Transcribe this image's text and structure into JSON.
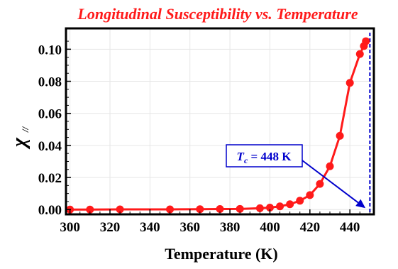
{
  "chart_data": {
    "type": "line",
    "title": "Longitudinal Susceptibility vs. Temperature",
    "xlabel": "Temperature (K)",
    "ylabel": "χ",
    "ylabel_subscript": "//",
    "xlim": [
      298,
      452
    ],
    "ylim": [
      -0.003,
      0.113
    ],
    "x_ticks": [
      300,
      320,
      340,
      360,
      380,
      400,
      420,
      440
    ],
    "y_ticks": [
      "0.00",
      "0.02",
      "0.04",
      "0.06",
      "0.08",
      "0.10"
    ],
    "y_tick_values": [
      0.0,
      0.02,
      0.04,
      0.06,
      0.08,
      0.1
    ],
    "grid": true,
    "colors": {
      "series": "#ff1a1a",
      "annotation": "#0000cc",
      "title": "#ff1a1a"
    },
    "series": [
      {
        "x": [
          300,
          310,
          325,
          350,
          365,
          375,
          385,
          395,
          400,
          405,
          410,
          415,
          420,
          425,
          430,
          435,
          440,
          445,
          447,
          448
        ],
        "values": [
          0.0,
          0.0,
          0.0001,
          0.0001,
          0.0002,
          0.0003,
          0.0004,
          0.0008,
          0.0012,
          0.002,
          0.0033,
          0.0055,
          0.009,
          0.016,
          0.027,
          0.046,
          0.079,
          0.097,
          0.102,
          0.105
        ]
      }
    ],
    "vline": {
      "x": 450,
      "style": "dashed",
      "color": "#0000cc"
    },
    "annotation": {
      "symbol": "T",
      "subscript": "c",
      "text": " = 448 K",
      "arrow_to": [
        448.5,
        0.0
      ]
    }
  }
}
